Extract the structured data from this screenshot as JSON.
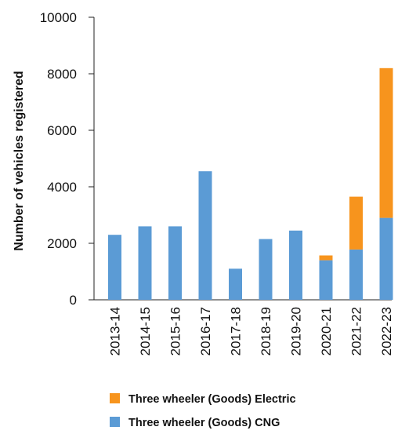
{
  "chart_data": {
    "type": "bar",
    "stacked": true,
    "ylabel": "Number of vehicles registered",
    "xlabel": "",
    "ylim": [
      0,
      10000
    ],
    "yticks": [
      0,
      2000,
      4000,
      6000,
      8000,
      10000
    ],
    "ytick_labels": [
      "0",
      "2000",
      "4000",
      "6000",
      "8000",
      "10000"
    ],
    "categories": [
      "2013-14",
      "2014-15",
      "2015-16",
      "2016-17",
      "2017-18",
      "2018-19",
      "2019-20",
      "2020-21",
      "2021-22",
      "2022-23"
    ],
    "series": [
      {
        "name": "Three wheeler (Goods) CNG",
        "color": "#5b9bd5",
        "values": [
          2300,
          2600,
          2600,
          4550,
          1100,
          2150,
          2450,
          1400,
          1780,
          2900
        ]
      },
      {
        "name": "Three wheeler (Goods) Electric",
        "color": "#f7941d",
        "values": [
          0,
          0,
          0,
          0,
          0,
          0,
          0,
          170,
          1870,
          5300
        ]
      }
    ],
    "legend_order": [
      1,
      0
    ],
    "legend_position": "bottom",
    "grid": false
  }
}
